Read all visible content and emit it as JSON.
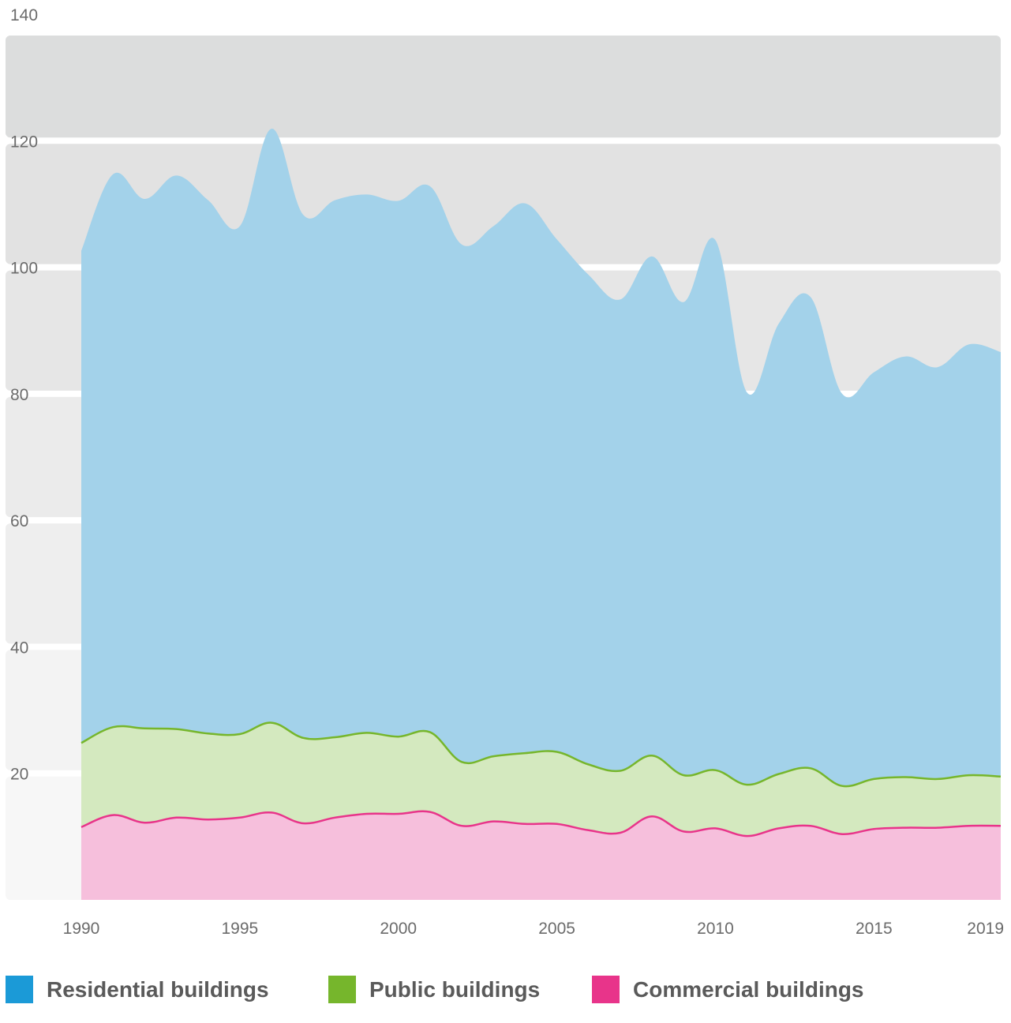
{
  "chart_data": {
    "type": "area",
    "stacked": true,
    "x": [
      1990,
      1991,
      1992,
      1993,
      1994,
      1995,
      1996,
      1997,
      1998,
      1999,
      2000,
      2001,
      2002,
      2003,
      2004,
      2005,
      2006,
      2007,
      2008,
      2009,
      2010,
      2011,
      2012,
      2013,
      2014,
      2015,
      2016,
      2017,
      2018,
      2019
    ],
    "series": [
      {
        "name": "Commercial buildings",
        "color": "#e8348a",
        "fill": "#f6bfdc",
        "values": [
          11.5,
          13.4,
          12.2,
          13,
          12.7,
          13,
          13.8,
          12.1,
          13,
          13.6,
          13.6,
          13.9,
          11.7,
          12.4,
          12,
          12,
          11,
          10.6,
          13.2,
          10.8,
          11.3,
          10.1,
          11.3,
          11.7,
          10.4,
          11.2,
          11.4,
          11.4,
          11.7,
          11.7
        ]
      },
      {
        "name": "Public buildings",
        "color": "#76b62c",
        "fill": "#d4e9bf",
        "values": [
          13.3,
          13.9,
          14.9,
          14,
          13.6,
          13.2,
          14.2,
          13.5,
          12.7,
          12.8,
          12.2,
          12.6,
          10.1,
          10.3,
          11.2,
          11.4,
          10.4,
          9.8,
          9.6,
          8.9,
          9.2,
          8.1,
          8.6,
          9.1,
          7.6,
          7.9,
          8,
          7.7,
          8,
          7.8
        ]
      },
      {
        "name": "Residential buildings",
        "color": "#1b9ad7",
        "fill": "#a3d2ea",
        "values": [
          77.8,
          87.4,
          83.7,
          87.5,
          84.3,
          80.3,
          93.9,
          82.7,
          84.9,
          85.1,
          84.7,
          86.3,
          81.8,
          83.8,
          86.9,
          81,
          77.4,
          74.5,
          78.9,
          74.8,
          83.8,
          62,
          71.2,
          74.5,
          62,
          64.3,
          66.5,
          65.1,
          68.1,
          67.1
        ]
      }
    ],
    "ylim": [
      0,
      140
    ],
    "yticks": [
      "20",
      "40",
      "60",
      "80",
      "100",
      "120",
      "140"
    ],
    "xticks": [
      "1990",
      "1995",
      "2000",
      "2005",
      "2010",
      "2015",
      "2019"
    ],
    "grid": true,
    "legend_position": "bottom"
  },
  "legend": [
    {
      "label": "Residential buildings",
      "color": "#1b9ad7"
    },
    {
      "label": "Public buildings",
      "color": "#76b62c"
    },
    {
      "label": "Commercial buildings",
      "color": "#e8348a"
    }
  ]
}
